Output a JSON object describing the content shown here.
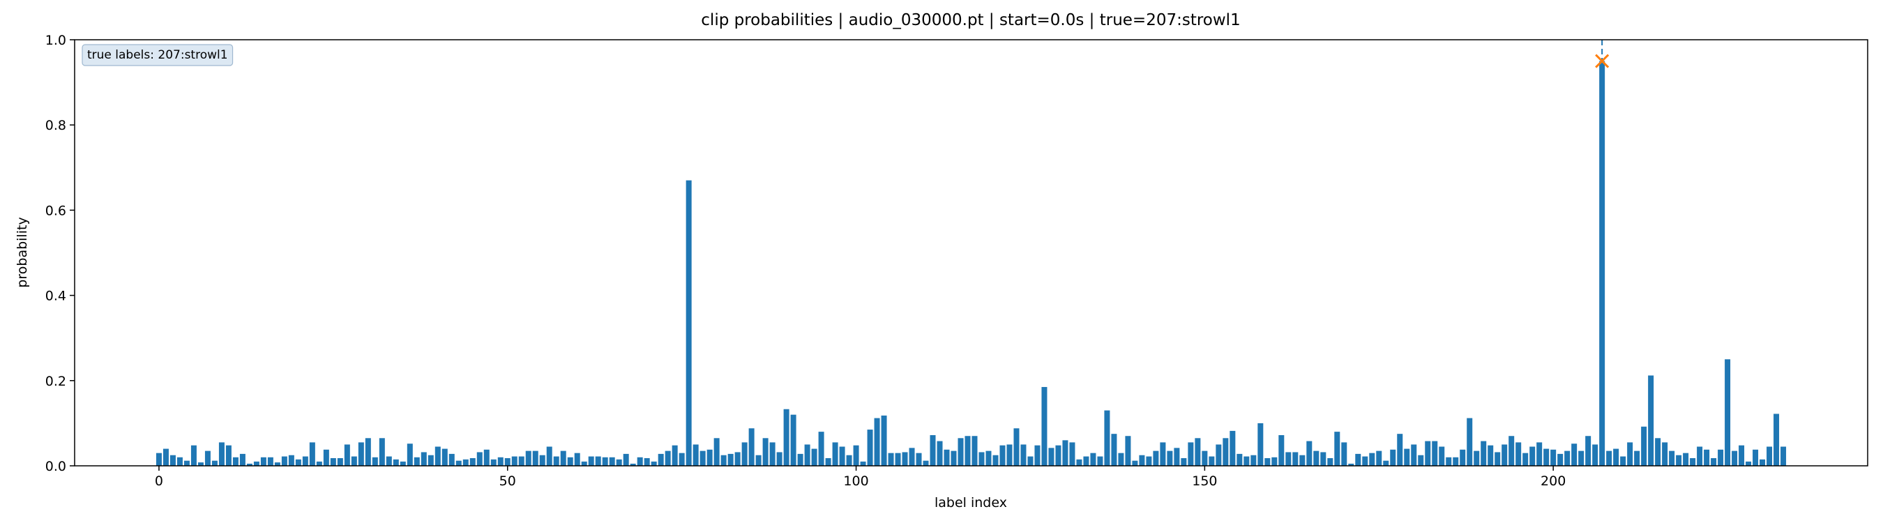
{
  "chart_data": {
    "type": "bar",
    "title": "clip probabilities | audio_030000.pt | start=0.0s | true=207:strowl1",
    "xlabel": "label index",
    "ylabel": "probability",
    "annotation": "true labels: 207:strowl1",
    "color": "#1f77b4",
    "highlight": {
      "x": 207,
      "y": 0.95,
      "color": "#ff7f0e"
    },
    "xlim": [
      -12.1,
      245.1
    ],
    "ylim": [
      0,
      1
    ],
    "xticks": [
      0,
      50,
      100,
      150,
      200
    ],
    "yticks": [
      {
        "value": 0,
        "label": "0.0"
      },
      {
        "value": 0.2,
        "label": "0.2"
      },
      {
        "value": 0.4,
        "label": "0.4"
      },
      {
        "value": 0.6,
        "label": "0.6"
      },
      {
        "value": 0.8,
        "label": "0.8"
      },
      {
        "value": 1,
        "label": "1.0"
      }
    ],
    "x": [
      0,
      1,
      2,
      3,
      4,
      5,
      6,
      7,
      8,
      9,
      10,
      11,
      12,
      13,
      14,
      15,
      16,
      17,
      18,
      19,
      20,
      21,
      22,
      23,
      24,
      25,
      26,
      27,
      28,
      29,
      30,
      31,
      32,
      33,
      34,
      35,
      36,
      37,
      38,
      39,
      40,
      41,
      42,
      43,
      44,
      45,
      46,
      47,
      48,
      49,
      50,
      51,
      52,
      53,
      54,
      55,
      56,
      57,
      58,
      59,
      60,
      61,
      62,
      63,
      64,
      65,
      66,
      67,
      68,
      69,
      70,
      71,
      72,
      73,
      74,
      75,
      76,
      77,
      78,
      79,
      80,
      81,
      82,
      83,
      84,
      85,
      86,
      87,
      88,
      89,
      90,
      91,
      92,
      93,
      94,
      95,
      96,
      97,
      98,
      99,
      100,
      101,
      102,
      103,
      104,
      105,
      106,
      107,
      108,
      109,
      110,
      111,
      112,
      113,
      114,
      115,
      116,
      117,
      118,
      119,
      120,
      121,
      122,
      123,
      124,
      125,
      126,
      127,
      128,
      129,
      130,
      131,
      132,
      133,
      134,
      135,
      136,
      137,
      138,
      139,
      140,
      141,
      142,
      143,
      144,
      145,
      146,
      147,
      148,
      149,
      150,
      151,
      152,
      153,
      154,
      155,
      156,
      157,
      158,
      159,
      160,
      161,
      162,
      163,
      164,
      165,
      166,
      167,
      168,
      169,
      170,
      171,
      172,
      173,
      174,
      175,
      176,
      177,
      178,
      179,
      180,
      181,
      182,
      183,
      184,
      185,
      186,
      187,
      188,
      189,
      190,
      191,
      192,
      193,
      194,
      195,
      196,
      197,
      198,
      199,
      200,
      201,
      202,
      203,
      204,
      205,
      206,
      207,
      208,
      209,
      210,
      211,
      212,
      213,
      214,
      215,
      216,
      217,
      218,
      219,
      220,
      221,
      222,
      223,
      224,
      225,
      226,
      227,
      228,
      229,
      230,
      231,
      232,
      233
    ],
    "values": [
      0.03,
      0.04,
      0.025,
      0.02,
      0.012,
      0.048,
      0.008,
      0.035,
      0.012,
      0.055,
      0.048,
      0.02,
      0.028,
      0.005,
      0.01,
      0.02,
      0.02,
      0.008,
      0.022,
      0.025,
      0.015,
      0.022,
      0.055,
      0.01,
      0.038,
      0.018,
      0.018,
      0.05,
      0.022,
      0.055,
      0.065,
      0.02,
      0.065,
      0.022,
      0.015,
      0.01,
      0.052,
      0.02,
      0.032,
      0.025,
      0.045,
      0.04,
      0.028,
      0.012,
      0.015,
      0.018,
      0.032,
      0.038,
      0.015,
      0.02,
      0.018,
      0.022,
      0.022,
      0.035,
      0.035,
      0.025,
      0.045,
      0.022,
      0.035,
      0.02,
      0.03,
      0.01,
      0.022,
      0.022,
      0.02,
      0.02,
      0.015,
      0.028,
      0.005,
      0.02,
      0.018,
      0.01,
      0.028,
      0.035,
      0.048,
      0.03,
      0.67,
      0.05,
      0.035,
      0.038,
      0.065,
      0.025,
      0.028,
      0.032,
      0.055,
      0.088,
      0.025,
      0.065,
      0.055,
      0.032,
      0.133,
      0.12,
      0.028,
      0.05,
      0.04,
      0.08,
      0.018,
      0.055,
      0.045,
      0.025,
      0.048,
      0.01,
      0.085,
      0.112,
      0.118,
      0.03,
      0.03,
      0.032,
      0.042,
      0.03,
      0.012,
      0.072,
      0.058,
      0.038,
      0.035,
      0.065,
      0.07,
      0.07,
      0.032,
      0.035,
      0.025,
      0.048,
      0.05,
      0.088,
      0.05,
      0.022,
      0.048,
      0.185,
      0.042,
      0.048,
      0.06,
      0.055,
      0.015,
      0.022,
      0.03,
      0.022,
      0.13,
      0.075,
      0.03,
      0.07,
      0.012,
      0.025,
      0.022,
      0.035,
      0.055,
      0.035,
      0.042,
      0.018,
      0.055,
      0.065,
      0.035,
      0.022,
      0.05,
      0.065,
      0.082,
      0.028,
      0.022,
      0.025,
      0.1,
      0.018,
      0.02,
      0.072,
      0.032,
      0.032,
      0.025,
      0.058,
      0.035,
      0.032,
      0.018,
      0.08,
      0.055,
      0.005,
      0.028,
      0.022,
      0.03,
      0.035,
      0.012,
      0.038,
      0.075,
      0.04,
      0.05,
      0.025,
      0.058,
      0.058,
      0.045,
      0.02,
      0.02,
      0.038,
      0.112,
      0.035,
      0.058,
      0.048,
      0.032,
      0.05,
      0.07,
      0.055,
      0.03,
      0.045,
      0.055,
      0.04,
      0.038,
      0.028,
      0.035,
      0.052,
      0.035,
      0.07,
      0.05,
      0.95,
      0.035,
      0.04,
      0.022,
      0.055,
      0.035,
      0.092,
      0.212,
      0.065,
      0.055,
      0.035,
      0.025,
      0.03,
      0.018,
      0.045,
      0.038,
      0.018,
      0.038,
      0.25,
      0.035,
      0.048,
      0.01,
      0.038,
      0.015,
      0.045,
      0.122,
      0.045
    ]
  }
}
